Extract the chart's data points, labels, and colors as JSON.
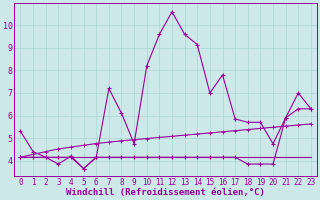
{
  "xlabel": "Windchill (Refroidissement éolien,°C)",
  "background_color": "#cce8e8",
  "line_color": "#990099",
  "x_hours": [
    0,
    1,
    2,
    3,
    4,
    5,
    6,
    7,
    8,
    9,
    10,
    11,
    12,
    13,
    14,
    15,
    16,
    17,
    18,
    19,
    20,
    21,
    22,
    23
  ],
  "series1": [
    5.3,
    4.4,
    4.15,
    3.85,
    4.2,
    3.65,
    4.15,
    7.2,
    6.1,
    4.75,
    8.2,
    9.6,
    10.6,
    9.6,
    9.15,
    7.0,
    7.8,
    5.85,
    5.7,
    5.7,
    4.75,
    5.9,
    7.0,
    6.3
  ],
  "series2": [
    4.15,
    4.15,
    4.15,
    4.15,
    4.15,
    4.15,
    4.15,
    4.15,
    4.15,
    4.15,
    4.15,
    4.15,
    4.15,
    4.15,
    4.15,
    4.15,
    4.15,
    4.15,
    4.15,
    4.15,
    4.15,
    4.15,
    4.15,
    4.15
  ],
  "series3": [
    4.15,
    4.28,
    4.4,
    4.52,
    4.6,
    4.68,
    4.76,
    4.82,
    4.88,
    4.93,
    4.98,
    5.03,
    5.08,
    5.13,
    5.18,
    5.23,
    5.28,
    5.33,
    5.38,
    5.43,
    5.48,
    5.53,
    5.58,
    5.63
  ],
  "series4": [
    4.15,
    4.15,
    4.15,
    4.15,
    4.15,
    3.65,
    4.15,
    4.15,
    4.15,
    4.15,
    4.15,
    4.15,
    4.15,
    4.15,
    4.15,
    4.15,
    4.15,
    4.15,
    3.85,
    3.85,
    3.85,
    5.9,
    6.3,
    6.3
  ],
  "ylim": [
    3.3,
    11.0
  ],
  "yticks": [
    4,
    5,
    6,
    7,
    8,
    9,
    10
  ],
  "grid_color": "#aad4d4",
  "marker_size": 2.5,
  "linewidth": 0.8,
  "tick_label_fontsize": 5.5,
  "axis_label_fontsize": 6.5
}
